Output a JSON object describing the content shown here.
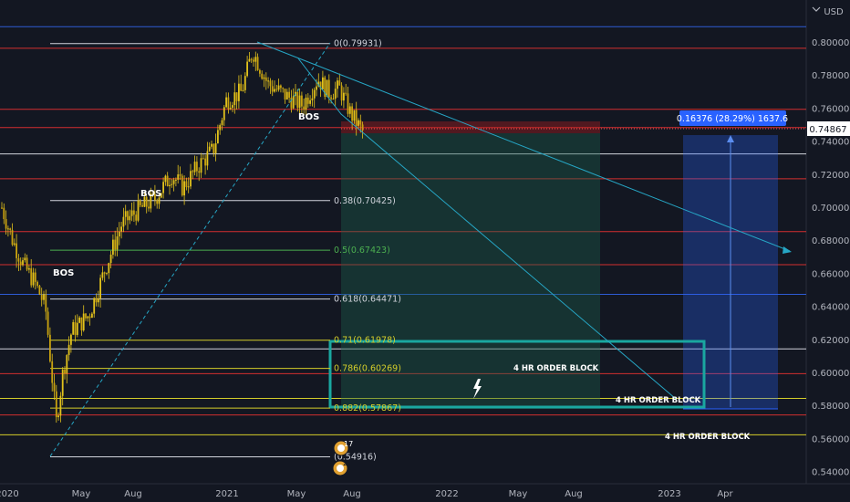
{
  "currency": "USD",
  "current_price": "0.74867",
  "measure_label": "0.16376 (28.29%) 1637.6",
  "bos_labels": [
    "BOS",
    "BOS",
    "BOS"
  ],
  "order_blocks": [
    "4 HR ORDER BLOCK",
    "4 HR ORDER BLOCK",
    "4 HR ORDER BLOCK"
  ],
  "event_badges": [
    "17",
    "2"
  ],
  "colors": {
    "background": "#131722",
    "candle": "#e2c21c",
    "red_line": "#d32f2f",
    "blue_line": "#2e5bd4",
    "cyan": "#26a6c5",
    "teal_box": "#1aa7a0",
    "fib_yellow": "#d4cd2a",
    "fib_green": "#4caf50",
    "price_tag": "#2962ff"
  },
  "chart_data": {
    "type": "candlestick",
    "title": "",
    "y_ticks": [
      "0.80000",
      "0.78000",
      "0.76000",
      "0.74000",
      "0.72000",
      "0.70000",
      "0.68000",
      "0.66000",
      "0.64000",
      "0.62000",
      "0.60000",
      "0.58000",
      "0.56000",
      "0.54000"
    ],
    "x_ticks": [
      "2020",
      "May",
      "Aug",
      "2021",
      "May",
      "Aug",
      "2022",
      "May",
      "Aug",
      "2023",
      "Apr"
    ],
    "ylim": [
      0.537,
      0.812
    ],
    "fib_levels": [
      {
        "label": "0(0.79931)",
        "value": 0.79931
      },
      {
        "label": "0.38(0.70425)",
        "value": 0.70425
      },
      {
        "label": "0.5(0.67423)",
        "value": 0.67423
      },
      {
        "label": "0.618(0.64471)",
        "value": 0.64471
      },
      {
        "label": "0.71(0.61978)",
        "value": 0.61978
      },
      {
        "label": "0.786(0.60269)",
        "value": 0.60269
      },
      {
        "label": "0.882(0.57867)",
        "value": 0.57867
      },
      {
        "label": "(0.54916)",
        "value": 0.54916
      }
    ],
    "horizontal_lines": {
      "red": [
        0.7965,
        0.7595,
        0.7485,
        0.7175,
        0.6855,
        0.6655,
        0.5995,
        0.5745
      ],
      "blue": [
        0.8095,
        0.6475
      ],
      "white": [
        0.7325,
        0.6145
      ],
      "yellow": [
        0.5625,
        0.5845
      ]
    },
    "price_series": [
      [
        2020.0,
        0.7
      ],
      [
        2020.05,
        0.68
      ],
      [
        2020.1,
        0.665
      ],
      [
        2020.15,
        0.655
      ],
      [
        2020.2,
        0.64
      ],
      [
        2020.25,
        0.57
      ],
      [
        2020.28,
        0.6
      ],
      [
        2020.32,
        0.625
      ],
      [
        2020.4,
        0.635
      ],
      [
        2020.48,
        0.665
      ],
      [
        2020.55,
        0.69
      ],
      [
        2020.62,
        0.698
      ],
      [
        2020.7,
        0.705
      ],
      [
        2020.78,
        0.72
      ],
      [
        2020.83,
        0.712
      ],
      [
        2020.9,
        0.725
      ],
      [
        2020.97,
        0.735
      ],
      [
        2021.03,
        0.765
      ],
      [
        2021.1,
        0.77
      ],
      [
        2021.15,
        0.795
      ],
      [
        2021.22,
        0.775
      ],
      [
        2021.3,
        0.768
      ],
      [
        2021.38,
        0.762
      ],
      [
        2021.45,
        0.778
      ],
      [
        2021.5,
        0.77
      ],
      [
        2021.55,
        0.772
      ],
      [
        2021.6,
        0.757
      ],
      [
        2021.66,
        0.745
      ]
    ]
  }
}
